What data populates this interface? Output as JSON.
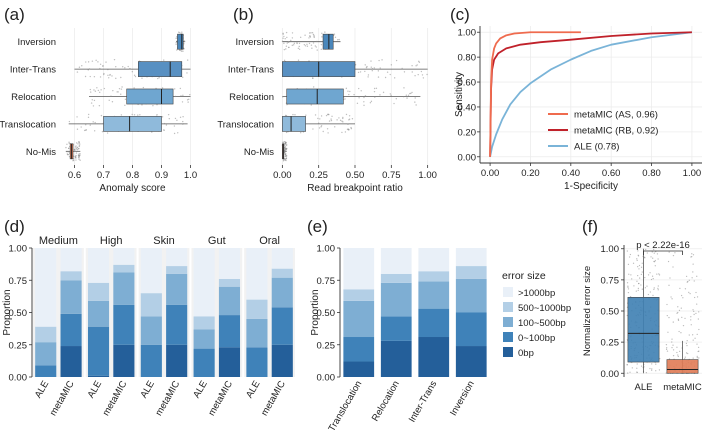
{
  "chart_data": [
    {
      "panel": "(a)",
      "type": "boxplot",
      "orientation": "horizontal",
      "xlabel": "Anomaly score",
      "xlim": [
        0.55,
        1.05
      ],
      "xticks": [
        0.6,
        0.7,
        0.8,
        0.9,
        1.0
      ],
      "categories": [
        "Inversion",
        "Inter-Trans",
        "Relocation",
        "Translocation",
        "No-Mis"
      ],
      "boxes": [
        {
          "min": 0.95,
          "q1": 0.955,
          "median": 0.97,
          "q3": 0.975,
          "max": 0.98,
          "color": "#4a87bb"
        },
        {
          "min": 0.6,
          "q1": 0.82,
          "median": 0.93,
          "q3": 0.97,
          "max": 1.0,
          "color": "#5890c2"
        },
        {
          "min": 0.65,
          "q1": 0.78,
          "median": 0.9,
          "q3": 0.94,
          "max": 1.0,
          "color": "#6fa6d0"
        },
        {
          "min": 0.58,
          "q1": 0.7,
          "median": 0.79,
          "q3": 0.9,
          "max": 0.99,
          "color": "#8fbadb"
        },
        {
          "min": 0.57,
          "q1": 0.585,
          "median": 0.59,
          "q3": 0.595,
          "max": 0.62,
          "color": "#e07b55"
        }
      ]
    },
    {
      "panel": "(b)",
      "type": "boxplot",
      "orientation": "horizontal",
      "xlabel": "Read breakpoint ratio",
      "xlim": [
        -0.03,
        1.03
      ],
      "xticks": [
        0.0,
        0.25,
        0.5,
        0.75,
        1.0
      ],
      "categories": [
        "Inversion",
        "Inter-Trans",
        "Relocation",
        "Translocation",
        "No-Mis"
      ],
      "boxes": [
        {
          "min": 0.0,
          "q1": 0.28,
          "median": 0.32,
          "q3": 0.35,
          "max": 0.4,
          "color": "#4a87bb"
        },
        {
          "min": 0.0,
          "q1": 0.0,
          "median": 0.25,
          "q3": 0.5,
          "max": 1.0,
          "color": "#5890c2"
        },
        {
          "min": 0.0,
          "q1": 0.03,
          "median": 0.24,
          "q3": 0.42,
          "max": 0.95,
          "color": "#6fa6d0"
        },
        {
          "min": 0.0,
          "q1": 0.0,
          "median": 0.06,
          "q3": 0.16,
          "max": 0.5,
          "color": "#8fbadb"
        },
        {
          "min": 0.0,
          "q1": 0.0,
          "median": 0.005,
          "q3": 0.01,
          "max": 0.03,
          "color": "#e07b55"
        }
      ]
    },
    {
      "panel": "(c)",
      "type": "line",
      "xlabel": "1-Specificity",
      "ylabel": "Sensitivity",
      "xlim": [
        -0.05,
        1.05
      ],
      "ylim": [
        -0.05,
        1.05
      ],
      "xticks": [
        0.0,
        0.2,
        0.4,
        0.6,
        0.8,
        1.0
      ],
      "yticks": [
        0.0,
        0.2,
        0.4,
        0.6,
        0.8,
        1.0
      ],
      "xtick_labels": [
        "0.00",
        "0.20",
        "0.40",
        "0.60",
        "0.80",
        "1.00"
      ],
      "ytick_labels": [
        "0.00",
        "0.20",
        "0.40",
        "0.60",
        "0.80",
        "1.00"
      ],
      "series": [
        {
          "name": "metaMIC (AS, 0.96)",
          "color": "#ef6b4e",
          "x": [
            0,
            0.005,
            0.01,
            0.02,
            0.03,
            0.05,
            0.08,
            0.12,
            0.2,
            0.3,
            0.45
          ],
          "y": [
            0,
            0.6,
            0.78,
            0.87,
            0.91,
            0.95,
            0.975,
            0.99,
            1.0,
            1.0,
            1.0
          ]
        },
        {
          "name": "metaMIC (RB, 0.92)",
          "color": "#c0212a",
          "x": [
            0,
            0.005,
            0.01,
            0.02,
            0.04,
            0.08,
            0.15,
            0.25,
            0.4,
            0.6,
            0.8,
            1.0
          ],
          "y": [
            0,
            0.55,
            0.7,
            0.78,
            0.83,
            0.87,
            0.9,
            0.92,
            0.94,
            0.97,
            0.99,
            1.0
          ]
        },
        {
          "name": "ALE (0.78)",
          "color": "#7ab4d8",
          "x": [
            0,
            0.01,
            0.03,
            0.06,
            0.1,
            0.15,
            0.2,
            0.3,
            0.4,
            0.5,
            0.6,
            0.8,
            1.0
          ],
          "y": [
            0,
            0.08,
            0.18,
            0.3,
            0.42,
            0.52,
            0.59,
            0.7,
            0.78,
            0.85,
            0.9,
            0.96,
            1.0
          ]
        }
      ]
    },
    {
      "panel": "(d)",
      "type": "stacked-bar",
      "ylabel": "Proportion",
      "ylim": [
        0,
        1
      ],
      "yticks": [
        "0.00",
        "0.25",
        "0.50",
        "0.75",
        "1.00"
      ],
      "groups": [
        "Medium",
        "High",
        "Skin",
        "Gut",
        "Oral"
      ],
      "categories": [
        "ALE",
        "metaMIC"
      ],
      "stack_colors": [
        "#245f9a",
        "#3f82b9",
        "#7eaed3",
        "#b3cfe6",
        "#e9f0f8"
      ],
      "values": [
        [
          [
            0.0,
            0.09,
            0.18,
            0.12,
            0.61
          ],
          [
            0.24,
            0.25,
            0.26,
            0.07,
            0.18
          ]
        ],
        [
          [
            0.01,
            0.38,
            0.2,
            0.14,
            0.27
          ],
          [
            0.25,
            0.31,
            0.25,
            0.06,
            0.13
          ]
        ],
        [
          [
            0.0,
            0.25,
            0.22,
            0.18,
            0.35
          ],
          [
            0.25,
            0.31,
            0.24,
            0.06,
            0.14
          ]
        ],
        [
          [
            0.0,
            0.22,
            0.15,
            0.1,
            0.53
          ],
          [
            0.23,
            0.25,
            0.22,
            0.06,
            0.24
          ]
        ],
        [
          [
            0.0,
            0.23,
            0.22,
            0.15,
            0.4
          ],
          [
            0.25,
            0.29,
            0.23,
            0.07,
            0.16
          ]
        ]
      ]
    },
    {
      "panel": "(e)",
      "type": "stacked-bar",
      "ylabel": "Proportion",
      "ylim": [
        0,
        1
      ],
      "yticks": [
        "0.00",
        "0.25",
        "0.50",
        "0.75",
        "1.00"
      ],
      "categories": [
        "Translocation",
        "Relocation",
        "Inter-Trans",
        "Inversion"
      ],
      "legend_title": "error size",
      "legend": [
        ">1000bp",
        "500~1000bp",
        "100~500bp",
        "0~100bp",
        "0bp"
      ],
      "stack_colors": [
        "#245f9a",
        "#3f82b9",
        "#7eaed3",
        "#b3cfe6",
        "#e9f0f8"
      ],
      "values": [
        [
          0.12,
          0.19,
          0.28,
          0.09,
          0.32
        ],
        [
          0.28,
          0.19,
          0.26,
          0.07,
          0.2
        ],
        [
          0.31,
          0.22,
          0.21,
          0.08,
          0.18
        ],
        [
          0.24,
          0.26,
          0.26,
          0.1,
          0.14
        ]
      ]
    },
    {
      "panel": "(f)",
      "type": "boxplot",
      "orientation": "vertical",
      "ylabel": "Normalized error size",
      "ylim": [
        -0.03,
        1.03
      ],
      "yticks": [
        "0.00",
        "0.25",
        "0.50",
        "0.75",
        "1.00"
      ],
      "categories": [
        "ALE",
        "metaMIC"
      ],
      "annotation": "p < 2.22e-16",
      "boxes": [
        {
          "min": 0.0,
          "q1": 0.09,
          "median": 0.32,
          "q3": 0.61,
          "max": 1.0,
          "color": "#3e7fb2"
        },
        {
          "min": 0.0,
          "q1": 0.0,
          "median": 0.03,
          "q3": 0.11,
          "max": 0.26,
          "color": "#e07b55"
        }
      ]
    }
  ]
}
